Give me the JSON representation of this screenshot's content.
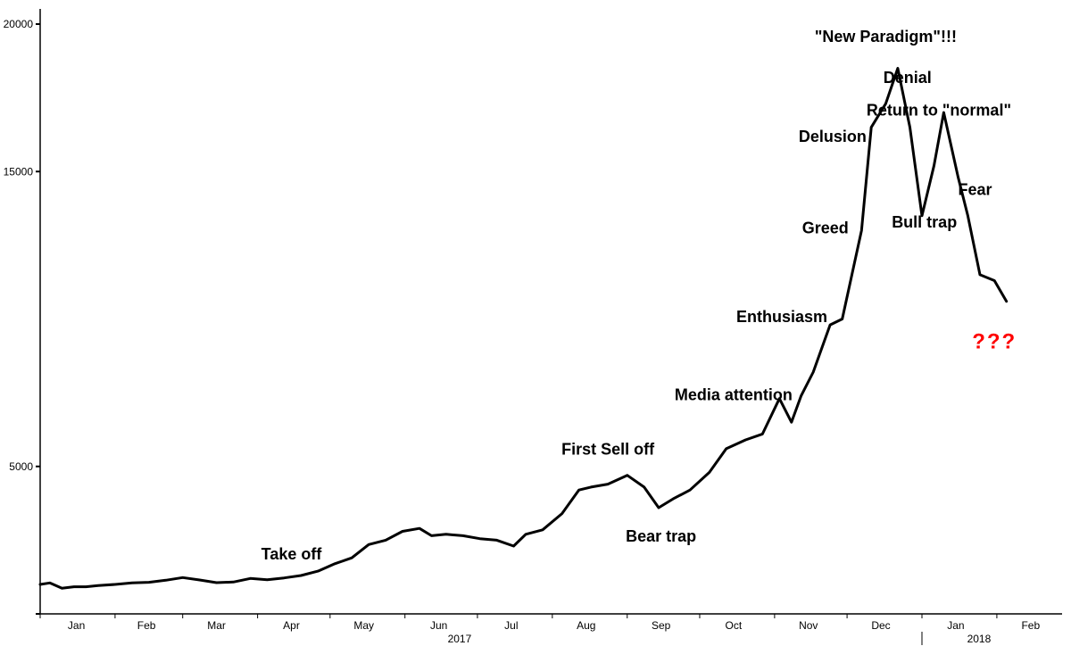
{
  "chart_data": {
    "type": "line",
    "title": "",
    "xlabel": "",
    "ylabel": "",
    "ylim": [
      0,
      20000
    ],
    "yticks": [
      0,
      5000,
      15000,
      20000
    ],
    "ytick_labels": [
      "5000",
      "15000",
      "20000"
    ],
    "x_range": [
      "2017-01-01",
      "2018-02-28"
    ],
    "month_labels": [
      {
        "date": "2017-01-16",
        "label": "Jan"
      },
      {
        "date": "2017-02-14",
        "label": "Feb"
      },
      {
        "date": "2017-03-15",
        "label": "Mar"
      },
      {
        "date": "2017-04-15",
        "label": "Apr"
      },
      {
        "date": "2017-05-15",
        "label": "May"
      },
      {
        "date": "2017-06-15",
        "label": "Jun"
      },
      {
        "date": "2017-07-15",
        "label": "Jul"
      },
      {
        "date": "2017-08-15",
        "label": "Aug"
      },
      {
        "date": "2017-09-15",
        "label": "Sep"
      },
      {
        "date": "2017-10-15",
        "label": "Oct"
      },
      {
        "date": "2017-11-15",
        "label": "Nov"
      },
      {
        "date": "2017-12-15",
        "label": "Dec"
      },
      {
        "date": "2018-01-15",
        "label": "Jan"
      },
      {
        "date": "2018-02-15",
        "label": "Feb"
      }
    ],
    "year_labels": [
      {
        "date": "2017-07-01",
        "label": "2017"
      },
      {
        "date": "2018-02-01",
        "label": "2018"
      }
    ],
    "series": [
      {
        "x": [
          "2017-01-01",
          "2017-01-05",
          "2017-01-10",
          "2017-01-15",
          "2017-01-20",
          "2017-01-25",
          "2017-02-01",
          "2017-02-08",
          "2017-02-15",
          "2017-02-22",
          "2017-03-01",
          "2017-03-08",
          "2017-03-15",
          "2017-03-22",
          "2017-03-29",
          "2017-04-05",
          "2017-04-12",
          "2017-04-19",
          "2017-04-26",
          "2017-05-03",
          "2017-05-10",
          "2017-05-17",
          "2017-05-24",
          "2017-05-31",
          "2017-06-07",
          "2017-06-12",
          "2017-06-18",
          "2017-06-25",
          "2017-07-02",
          "2017-07-09",
          "2017-07-16",
          "2017-07-21",
          "2017-07-28",
          "2017-08-05",
          "2017-08-12",
          "2017-08-17",
          "2017-08-24",
          "2017-09-01",
          "2017-09-08",
          "2017-09-14",
          "2017-09-20",
          "2017-09-27",
          "2017-10-05",
          "2017-10-12",
          "2017-10-20",
          "2017-10-27",
          "2017-11-03",
          "2017-11-08",
          "2017-11-12",
          "2017-11-17",
          "2017-11-24",
          "2017-11-29",
          "2017-12-03",
          "2017-12-07",
          "2017-12-11",
          "2017-12-17",
          "2017-12-22",
          "2017-12-27",
          "2018-01-01",
          "2018-01-06",
          "2018-01-10",
          "2018-01-16",
          "2018-01-20",
          "2018-01-25",
          "2018-01-31",
          "2018-02-05"
        ],
        "values": [
          1000,
          1050,
          870,
          920,
          920,
          960,
          1000,
          1050,
          1070,
          1140,
          1230,
          1150,
          1060,
          1080,
          1200,
          1160,
          1220,
          1300,
          1450,
          1700,
          1900,
          2350,
          2500,
          2800,
          2900,
          2650,
          2700,
          2650,
          2550,
          2500,
          2300,
          2700,
          2850,
          3400,
          4200,
          4300,
          4400,
          4700,
          4300,
          3600,
          3900,
          4200,
          4800,
          5600,
          5900,
          6100,
          7300,
          6500,
          7400,
          8200,
          9800,
          10000,
          11500,
          13000,
          16500,
          17300,
          18500,
          16500,
          13500,
          15200,
          17000,
          14800,
          13500,
          11500,
          11300,
          10600
        ]
      }
    ],
    "annotations": [
      {
        "text": "Take off",
        "date": "2017-04-15",
        "value": 1850
      },
      {
        "text": "First Sell off",
        "date": "2017-08-24",
        "value": 5400
      },
      {
        "text": "Bear trap",
        "date": "2017-09-15",
        "value": 2450
      },
      {
        "text": "Media attention",
        "date": "2017-10-15",
        "value": 7250
      },
      {
        "text": "Enthusiasm",
        "date": "2017-11-04",
        "value": 9900
      },
      {
        "text": "Greed",
        "date": "2017-11-22",
        "value": 12900
      },
      {
        "text": "Delusion",
        "date": "2017-11-25",
        "value": 16000
      },
      {
        "text": "\"New Paradigm\"!!!",
        "date": "2017-12-17",
        "value": 19400
      },
      {
        "text": "Denial",
        "date": "2017-12-26",
        "value": 18000
      },
      {
        "text": "Return to \"normal\"",
        "date": "2018-01-08",
        "value": 16900
      },
      {
        "text": "Bull trap",
        "date": "2018-01-02",
        "value": 13100
      },
      {
        "text": "Fear",
        "date": "2018-01-23",
        "value": 14200
      },
      {
        "text": "???",
        "date": "2018-01-31",
        "value": 9000,
        "color": "#ff0000"
      }
    ],
    "line_color": "#000000",
    "grid": false,
    "legend": "none"
  }
}
